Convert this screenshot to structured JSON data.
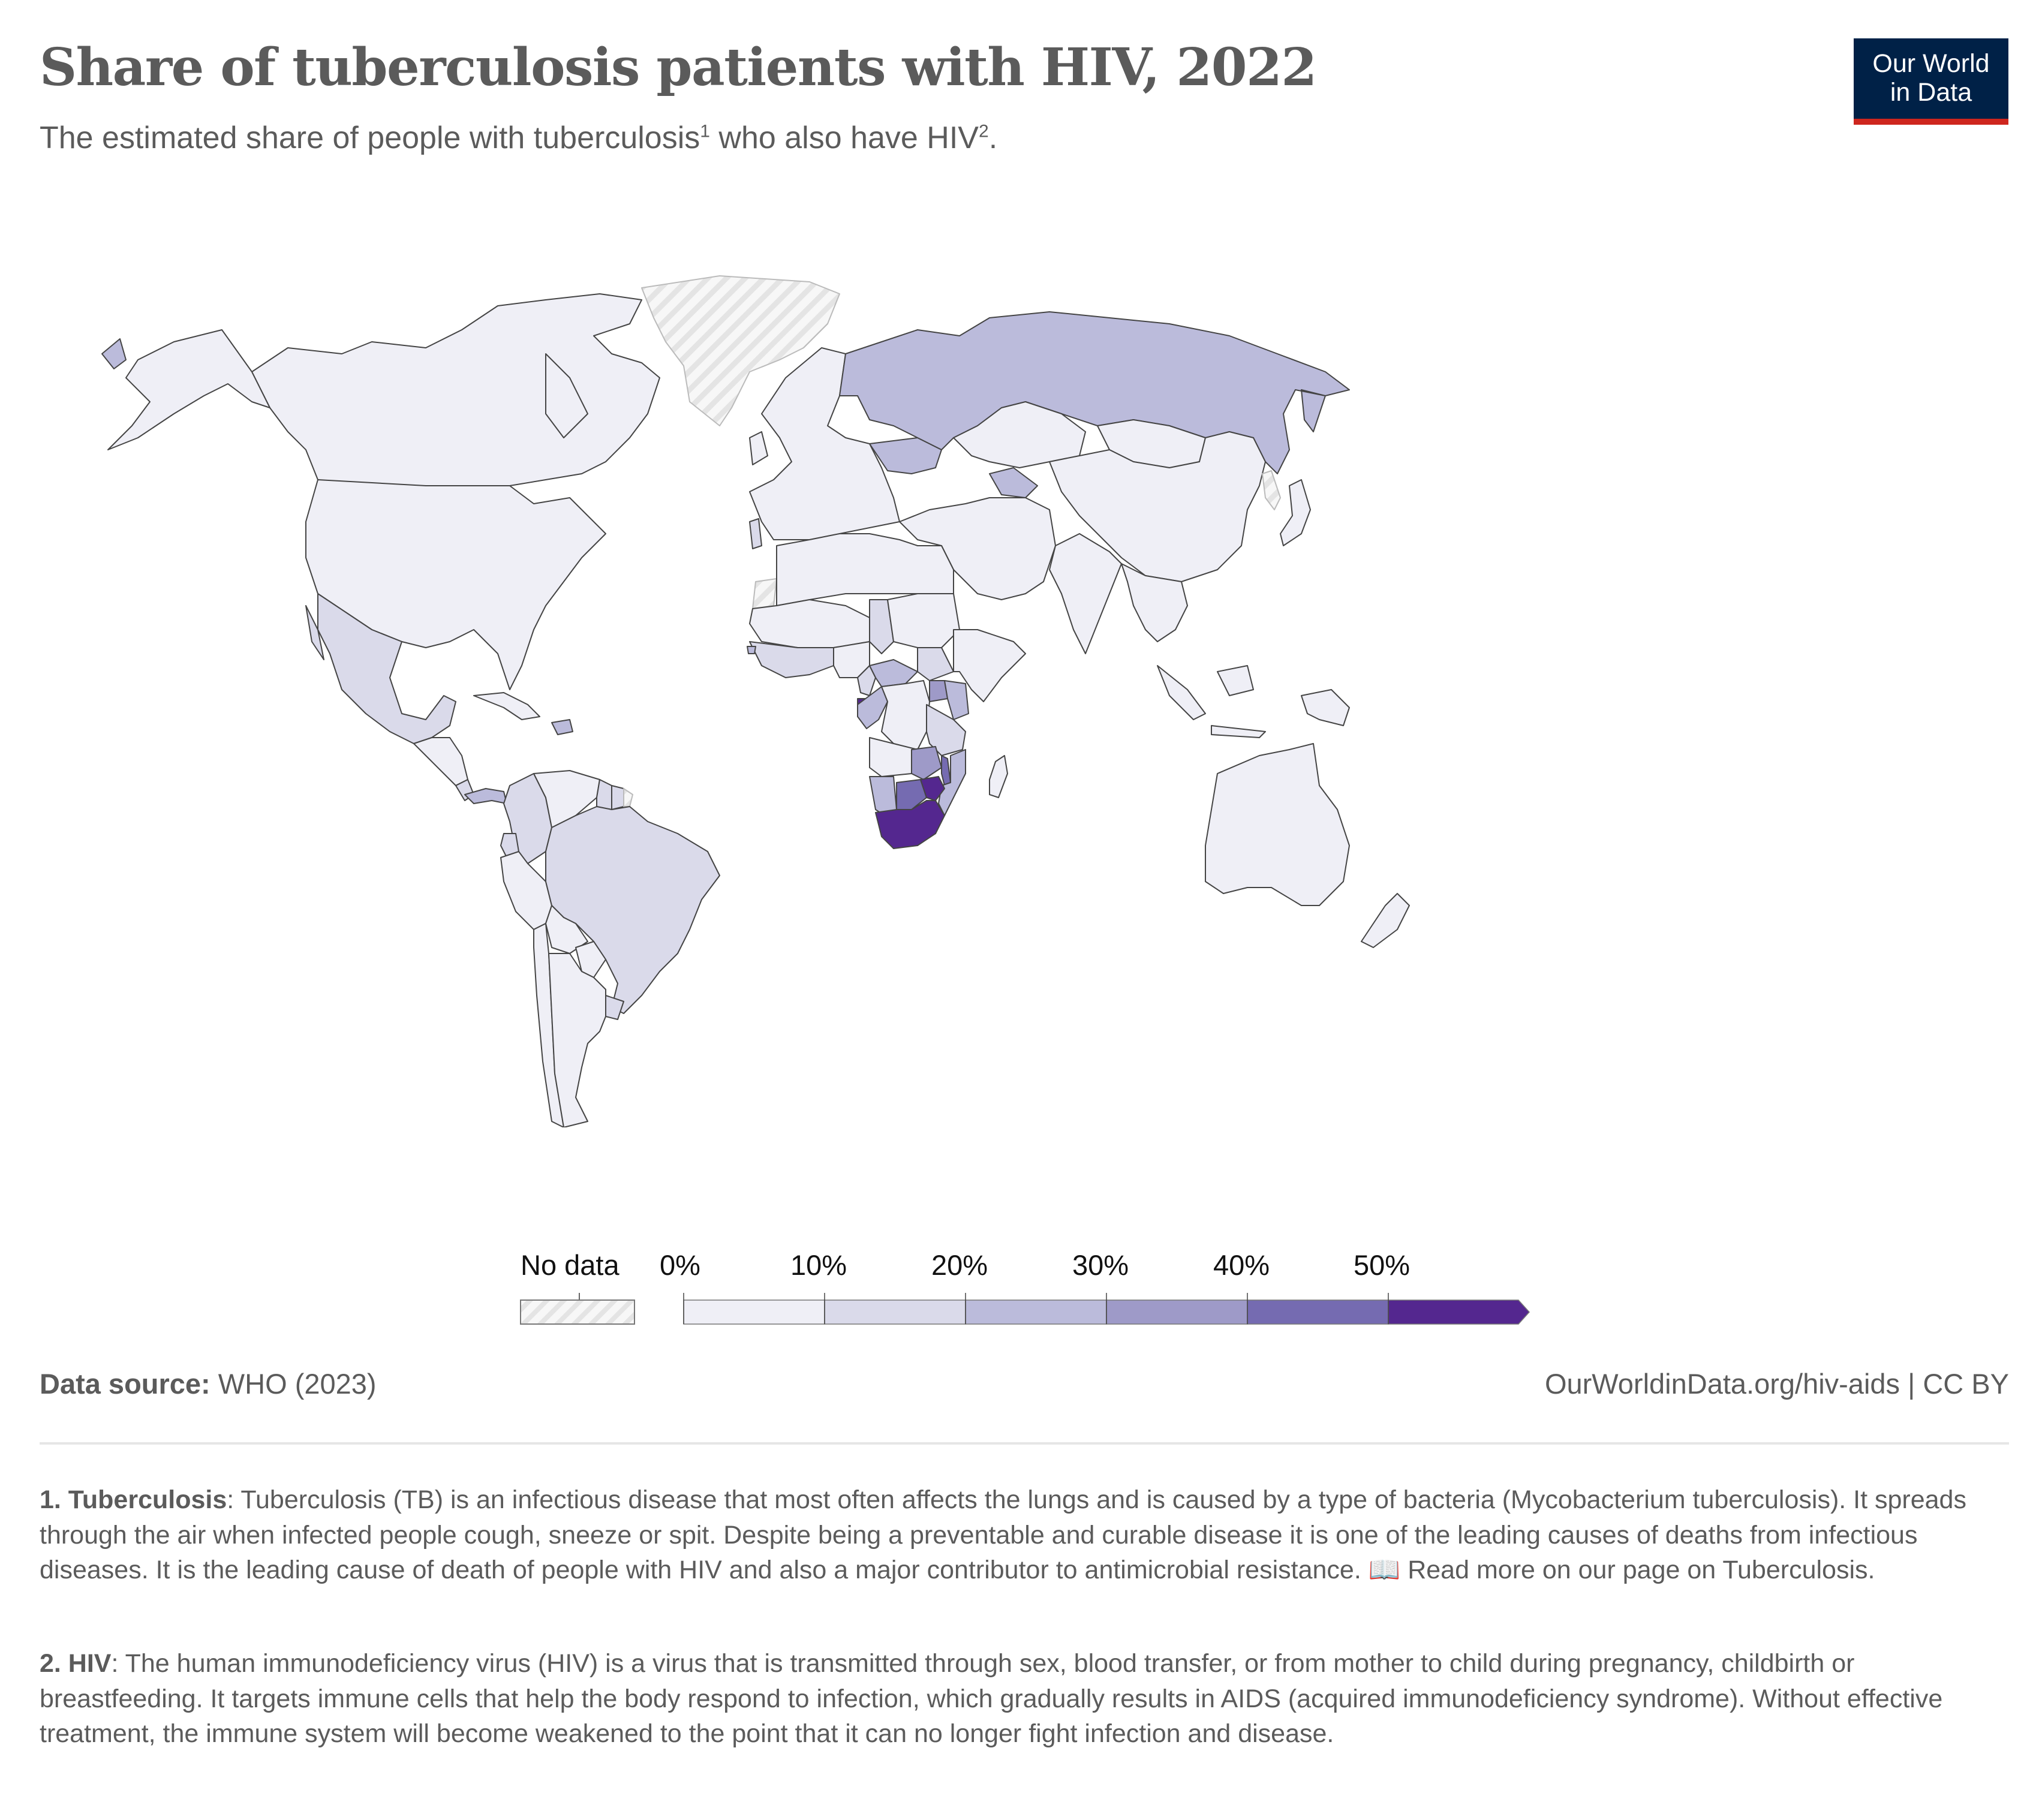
{
  "header": {
    "title": "Share of tuberculosis patients with HIV, 2022",
    "subtitle_pre": "The estimated share of people with tuberculosis",
    "subtitle_sup1": "1",
    "subtitle_mid": " who also have HIV",
    "subtitle_sup2": "2",
    "subtitle_post": "."
  },
  "logo": {
    "line1": "Our World",
    "line2": "in Data"
  },
  "colors": {
    "bins": [
      "#efeff6",
      "#dadaea",
      "#bbbbdb",
      "#9e9ac8",
      "#756bb1",
      "#54278f"
    ],
    "no_data": "#ececec",
    "border": "#444444",
    "logo_bg": "#002147",
    "logo_accent": "#ce261e",
    "text": "#5b5b5b"
  },
  "chart_data": {
    "type": "choropleth",
    "title": "Share of tuberculosis patients with HIV, 2022",
    "unit": "%",
    "legend": {
      "no_data_label": "No data",
      "tick_labels": [
        "0%",
        "10%",
        "20%",
        "30%",
        "40%",
        "50%"
      ],
      "bins": [
        [
          0,
          10
        ],
        [
          10,
          20
        ],
        [
          20,
          30
        ],
        [
          30,
          40
        ],
        [
          40,
          50
        ],
        [
          50,
          null
        ]
      ],
      "placement": "bottom-center"
    },
    "regions": [
      {
        "name": "Canada",
        "bin": 0
      },
      {
        "name": "United States",
        "bin": 0
      },
      {
        "name": "Alaska",
        "bin": 0
      },
      {
        "name": "Chukotka",
        "bin": 2
      },
      {
        "name": "Greenland",
        "bin": null
      },
      {
        "name": "Iceland",
        "bin": 0
      },
      {
        "name": "Mexico",
        "bin": 1
      },
      {
        "name": "Central America",
        "bin": 0
      },
      {
        "name": "Costa Rica",
        "bin": 1
      },
      {
        "name": "Panama",
        "bin": 2
      },
      {
        "name": "Cuba",
        "bin": 0
      },
      {
        "name": "Dominican Republic",
        "bin": 2
      },
      {
        "name": "Colombia",
        "bin": 1
      },
      {
        "name": "Venezuela",
        "bin": 0
      },
      {
        "name": "Guyana",
        "bin": 1
      },
      {
        "name": "Suriname",
        "bin": 1
      },
      {
        "name": "French Guiana",
        "bin": null
      },
      {
        "name": "Ecuador",
        "bin": 1
      },
      {
        "name": "Peru",
        "bin": 0
      },
      {
        "name": "Brazil",
        "bin": 1
      },
      {
        "name": "Bolivia",
        "bin": 0
      },
      {
        "name": "Paraguay",
        "bin": 0
      },
      {
        "name": "Uruguay",
        "bin": 1
      },
      {
        "name": "Chile",
        "bin": 0
      },
      {
        "name": "Argentina",
        "bin": 0
      },
      {
        "name": "Europe",
        "bin": 0
      },
      {
        "name": "Portugal",
        "bin": 1
      },
      {
        "name": "Ukraine",
        "bin": 2
      },
      {
        "name": "Russia",
        "bin": 2
      },
      {
        "name": "Kazakhstan",
        "bin": 0
      },
      {
        "name": "Turkmenistan",
        "bin": 2
      },
      {
        "name": "Middle East",
        "bin": 0
      },
      {
        "name": "Mongolia",
        "bin": 0
      },
      {
        "name": "China",
        "bin": 0
      },
      {
        "name": "Korea",
        "bin": null
      },
      {
        "name": "Japan",
        "bin": 0
      },
      {
        "name": "India",
        "bin": 0
      },
      {
        "name": "Southeast Asia",
        "bin": 0
      },
      {
        "name": "Indonesia",
        "bin": 0
      },
      {
        "name": "Papua New Guinea",
        "bin": 0
      },
      {
        "name": "Australia",
        "bin": 0
      },
      {
        "name": "New Zealand",
        "bin": 0
      },
      {
        "name": "Western Sahara",
        "bin": null
      },
      {
        "name": "North Africa",
        "bin": 0
      },
      {
        "name": "Sahel",
        "bin": 0
      },
      {
        "name": "Chad",
        "bin": 1
      },
      {
        "name": "Coastal West Africa",
        "bin": 1
      },
      {
        "name": "Guinea-Bissau",
        "bin": 2
      },
      {
        "name": "Nigeria",
        "bin": 0
      },
      {
        "name": "Cameroon",
        "bin": 1
      },
      {
        "name": "Central African Republic",
        "bin": 2
      },
      {
        "name": "Equatorial Guinea",
        "bin": 5
      },
      {
        "name": "Gabon and Congo",
        "bin": 2
      },
      {
        "name": "Sudan",
        "bin": 0
      },
      {
        "name": "South Sudan",
        "bin": 1
      },
      {
        "name": "Ethiopia and Somalia",
        "bin": 0
      },
      {
        "name": "DR Congo",
        "bin": 0
      },
      {
        "name": "Uganda",
        "bin": 3
      },
      {
        "name": "Kenya",
        "bin": 2
      },
      {
        "name": "Tanzania",
        "bin": 1
      },
      {
        "name": "Angola",
        "bin": 0
      },
      {
        "name": "Zambia",
        "bin": 3
      },
      {
        "name": "Malawi",
        "bin": 4
      },
      {
        "name": "Mozambique",
        "bin": 2
      },
      {
        "name": "Namibia",
        "bin": 2
      },
      {
        "name": "Botswana",
        "bin": 4
      },
      {
        "name": "Zimbabwe",
        "bin": 5
      },
      {
        "name": "South Africa",
        "bin": 5
      },
      {
        "name": "Madagascar",
        "bin": 0
      }
    ]
  },
  "footer": {
    "source_label": "Data source:",
    "source_value": " WHO (2023)",
    "url": "OurWorldinData.org/hiv-aids | CC BY"
  },
  "notes": [
    {
      "label": "1. Tuberculosis",
      "text": ": Tuberculosis (TB) is an infectious disease that most often affects the lungs and is caused by a type of bacteria (Mycobacterium tuberculosis). It spreads through the air when infected people cough, sneeze or spit. Despite being a preventable and curable disease it is one of the leading causes of deaths from infectious diseases. It is the leading cause of death of people with HIV and also a major contributor to antimicrobial resistance. ",
      "icon": "📖",
      "link": " Read more on our page on Tuberculosis."
    },
    {
      "label": "2. HIV",
      "text": ": The human immunodeficiency virus (HIV) is a virus that is transmitted through sex, blood transfer, or from mother to child during pregnancy, childbirth or breastfeeding. It targets immune cells that help the body respond to infection, which gradually results in AIDS (acquired immunodeficiency syndrome). Without effective treatment, the immune system will become weakened to the point that it can no longer fight infection and disease."
    }
  ]
}
